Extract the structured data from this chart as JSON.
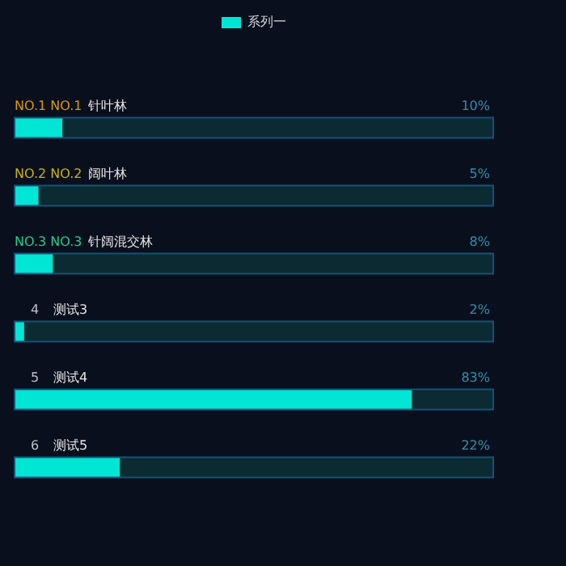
{
  "chart_data": {
    "type": "bar",
    "orientation": "horizontal",
    "categories": [
      "针叶林",
      "阔叶林",
      "针阔混交林",
      "测试3",
      "测试4",
      "测试5"
    ],
    "series": [
      {
        "name": "系列一",
        "color": "#00e5d4",
        "values": [
          10,
          5,
          8,
          2,
          83,
          22
        ],
        "value_labels": [
          "10%",
          "5%",
          "8%",
          "2%",
          "83%",
          "22%"
        ]
      }
    ],
    "xlim": [
      0,
      100
    ],
    "tick_labels": false,
    "legend": "top",
    "annotations": [
      "NO.1 NO.1",
      "NO.2 NO.2",
      "NO.3 NO.3",
      "4",
      "5",
      "6"
    ]
  }
}
